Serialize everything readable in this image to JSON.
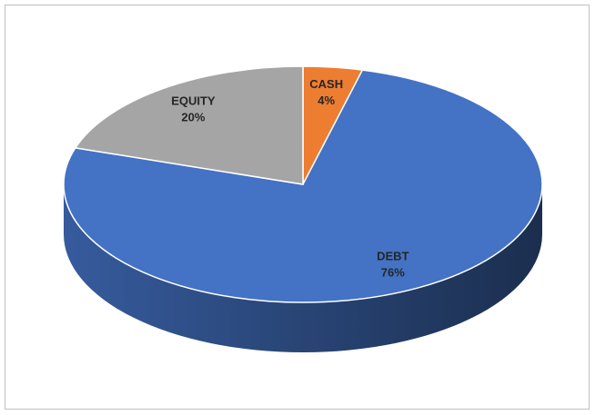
{
  "chart_data": {
    "type": "pie",
    "categories": [
      "CASH",
      "DEBT",
      "EQUITY"
    ],
    "values": [
      4,
      76,
      20
    ],
    "value_labels": [
      "4%",
      "76%",
      "20%"
    ],
    "colors": [
      "#ed7d31",
      "#4472c4",
      "#a5a5a5"
    ]
  }
}
